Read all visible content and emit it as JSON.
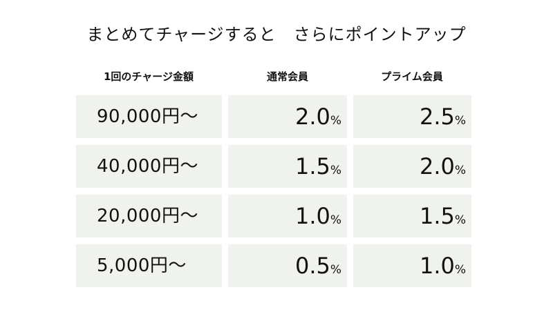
{
  "title": "まとめてチャージすると　さらにポイントアップ",
  "headers": {
    "amount": "1回のチャージ金額",
    "regular": "通常会員",
    "prime": "プライム会員"
  },
  "percent_sign": "%",
  "rows": [
    {
      "amount": "90,000円〜",
      "regular": "2.0",
      "prime": "2.5"
    },
    {
      "amount": "40,000円〜",
      "regular": "1.5",
      "prime": "2.0"
    },
    {
      "amount": "20,000円〜",
      "regular": "1.0",
      "prime": "1.5"
    },
    {
      "amount": "5,000円〜",
      "regular": "0.5",
      "prime": "1.0"
    }
  ],
  "colors": {
    "cell_background": "#eff2ed",
    "text": "#111111"
  }
}
